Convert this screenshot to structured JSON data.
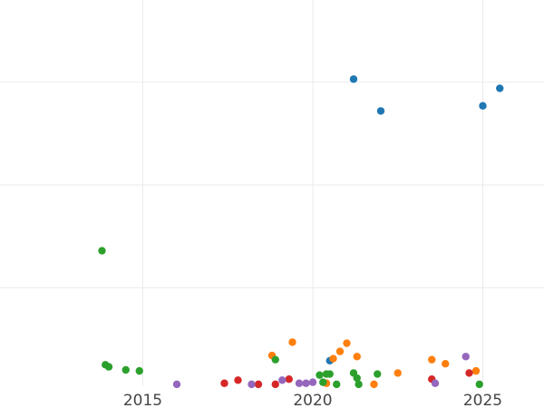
{
  "chart_data": {
    "type": "scatter",
    "title": "",
    "xlabel": "",
    "ylabel": "",
    "xlim": [
      2010.8,
      2026.8
    ],
    "ylim": [
      0.5,
      38
    ],
    "x_ticks": [
      {
        "value": 2015,
        "label": "2015"
      },
      {
        "value": 2020,
        "label": "2020"
      },
      {
        "value": 2025,
        "label": "2025"
      }
    ],
    "y_gridlines": [
      10,
      20,
      30
    ],
    "grid": true,
    "legend": "none",
    "series": [
      {
        "color": "#1f77b4",
        "points": [
          {
            "x": 2021.2,
            "y": 30.3
          },
          {
            "x": 2022.0,
            "y": 27.2
          },
          {
            "x": 2025.0,
            "y": 27.7
          },
          {
            "x": 2025.5,
            "y": 29.4
          },
          {
            "x": 2020.5,
            "y": 2.9
          }
        ]
      },
      {
        "color": "#ff7f0e",
        "points": [
          {
            "x": 2018.8,
            "y": 3.4
          },
          {
            "x": 2019.4,
            "y": 4.7
          },
          {
            "x": 2020.4,
            "y": 0.7
          },
          {
            "x": 2020.6,
            "y": 3.1
          },
          {
            "x": 2020.8,
            "y": 3.8
          },
          {
            "x": 2021.0,
            "y": 4.6
          },
          {
            "x": 2021.3,
            "y": 3.3
          },
          {
            "x": 2021.8,
            "y": 0.6
          },
          {
            "x": 2022.5,
            "y": 1.7
          },
          {
            "x": 2023.5,
            "y": 3.0
          },
          {
            "x": 2023.9,
            "y": 2.6
          },
          {
            "x": 2024.8,
            "y": 1.9
          }
        ]
      },
      {
        "color": "#2ca02c",
        "points": [
          {
            "x": 2013.8,
            "y": 13.6
          },
          {
            "x": 2013.9,
            "y": 2.5
          },
          {
            "x": 2014.0,
            "y": 2.3
          },
          {
            "x": 2014.5,
            "y": 2.0
          },
          {
            "x": 2014.9,
            "y": 1.9
          },
          {
            "x": 2018.9,
            "y": 3.0
          },
          {
            "x": 2020.2,
            "y": 1.5
          },
          {
            "x": 2020.4,
            "y": 1.6
          },
          {
            "x": 2020.5,
            "y": 1.6
          },
          {
            "x": 2020.3,
            "y": 0.8
          },
          {
            "x": 2020.7,
            "y": 0.6
          },
          {
            "x": 2021.2,
            "y": 1.7
          },
          {
            "x": 2021.3,
            "y": 1.2
          },
          {
            "x": 2021.35,
            "y": 0.6
          },
          {
            "x": 2021.9,
            "y": 1.6
          },
          {
            "x": 2024.9,
            "y": 0.6
          }
        ]
      },
      {
        "color": "#d62728",
        "points": [
          {
            "x": 2017.4,
            "y": 0.7
          },
          {
            "x": 2017.8,
            "y": 1.0
          },
          {
            "x": 2018.4,
            "y": 0.6
          },
          {
            "x": 2018.9,
            "y": 0.6
          },
          {
            "x": 2019.3,
            "y": 1.1
          },
          {
            "x": 2023.5,
            "y": 1.1
          },
          {
            "x": 2024.6,
            "y": 1.7
          }
        ]
      },
      {
        "color": "#9467bd",
        "points": [
          {
            "x": 2016.0,
            "y": 0.6
          },
          {
            "x": 2018.2,
            "y": 0.6
          },
          {
            "x": 2019.1,
            "y": 1.0
          },
          {
            "x": 2019.6,
            "y": 0.7
          },
          {
            "x": 2019.8,
            "y": 0.7
          },
          {
            "x": 2020.0,
            "y": 0.8
          },
          {
            "x": 2023.6,
            "y": 0.7
          },
          {
            "x": 2024.5,
            "y": 3.3
          }
        ]
      }
    ]
  }
}
